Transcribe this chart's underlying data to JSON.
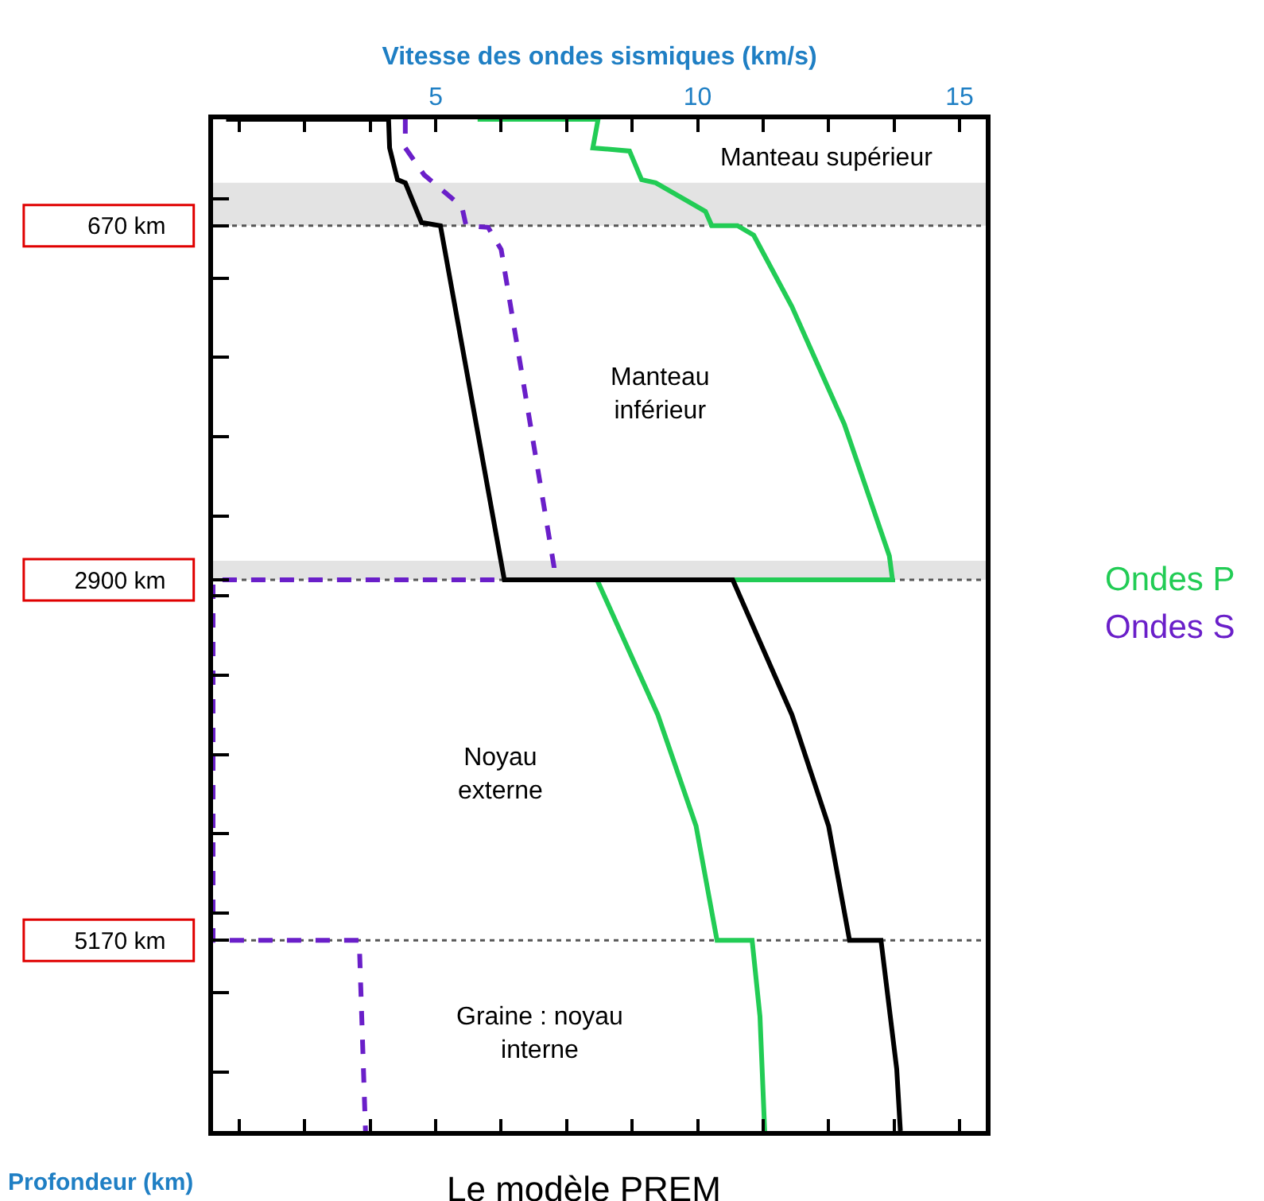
{
  "chart_data": {
    "type": "line",
    "title": "Le modèle PREM",
    "xlabel": "Vitesse des ondes sismiques (km/s)",
    "ylabel": "Profondeur (km)",
    "xlim": [
      0.75,
      15.5
    ],
    "xticks": [
      {
        "value": 1.25,
        "label": null
      },
      {
        "value": 2.5,
        "label": null
      },
      {
        "value": 3.75,
        "label": null
      },
      5,
      {
        "value": 6.25,
        "label": null
      },
      {
        "value": 7.5,
        "label": null
      },
      {
        "value": 8.75,
        "label": null
      },
      10,
      {
        "value": 11.25,
        "label": null
      },
      {
        "value": 12.5,
        "label": null
      },
      {
        "value": 13.75,
        "label": null
      },
      15
    ],
    "ylim": [
      6371,
      0
    ],
    "yticks": [
      {
        "value": 500,
        "label": null
      },
      {
        "value": 670,
        "label": "670 km"
      },
      {
        "value": 1000,
        "label": null
      },
      {
        "value": 1500,
        "label": null
      },
      {
        "value": 2000,
        "label": null
      },
      {
        "value": 2500,
        "label": null
      },
      {
        "value": 2900,
        "label": "2900 km"
      },
      {
        "value": 3000,
        "label": null
      },
      {
        "value": 3500,
        "label": null
      },
      {
        "value": 4000,
        "label": null
      },
      {
        "value": 4500,
        "label": null
      },
      {
        "value": 5000,
        "label": null
      },
      {
        "value": 5170,
        "label": "5170 km"
      },
      {
        "value": 5500,
        "label": null
      },
      {
        "value": 6000,
        "label": null
      }
    ],
    "series": [
      {
        "name": "Ondes P",
        "color": "#22cc55",
        "line_style": "solid",
        "x": [
          5.8,
          8.1,
          8.0,
          8.7,
          8.93,
          9.2,
          10.15,
          10.27,
          10.76,
          11.07,
          11.8,
          12.8,
          13.66,
          13.72,
          8.08,
          9.24,
          9.97,
          10.37,
          11.04,
          11.19,
          11.28
        ],
        "values": [
          0,
          0,
          180,
          200,
          380,
          400,
          580,
          670,
          670,
          730,
          1180,
          1920,
          2750,
          2900,
          2900,
          3750,
          4450,
          5170,
          5170,
          5650,
          6371
        ]
      },
      {
        "name": "Ondes S",
        "color": "#6a1fc9",
        "line_style": "dashed",
        "x": [
          4.42,
          4.42,
          4.78,
          5.5,
          5.58,
          6.0,
          6.25,
          7.26,
          7.26,
          0.75,
          0.75,
          3.54,
          3.66
        ],
        "values": [
          0,
          180,
          350,
          550,
          670,
          680,
          820,
          2820,
          2900,
          2900,
          5170,
          5170,
          6371
        ]
      },
      {
        "color": "#000000",
        "line_style": "solid",
        "x": [
          1.0,
          4.1,
          4.12,
          4.27,
          4.42,
          4.73,
          5.09,
          6.31,
          10.67,
          11.8,
          12.5,
          12.9,
          13.5,
          13.8,
          13.87
        ],
        "values": [
          0,
          0,
          180,
          380,
          400,
          650,
          670,
          2900,
          2900,
          3750,
          4450,
          5170,
          5170,
          5980,
          6371
        ]
      }
    ],
    "ref_lines": [
      {
        "axis": "y",
        "value": 670,
        "color": "#555555",
        "line_style": "dotted"
      },
      {
        "axis": "y",
        "value": 2900,
        "color": "#555555",
        "line_style": "dotted"
      },
      {
        "axis": "y",
        "value": 5170,
        "color": "#555555",
        "line_style": "dotted"
      }
    ],
    "bands": [
      {
        "axis": "y",
        "from": 400,
        "to": 670,
        "color": "#e3e3e3"
      },
      {
        "axis": "y",
        "from": 2780,
        "to": 2900,
        "color": "#e3e3e3"
      }
    ],
    "annotations": [
      "Manteau supérieur",
      "Manteau\ninférieur",
      "Noyau\nexterne",
      "Graine : noyau\ninterne"
    ],
    "grid": false,
    "marker": "none"
  }
}
